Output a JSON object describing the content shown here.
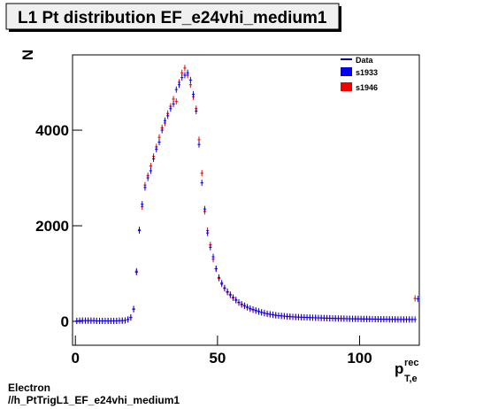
{
  "chart_data": {
    "type": "histogram",
    "title": "L1 Pt distribution EF_e24vhi_medium1",
    "ylabel": "N",
    "xlabel": {
      "base": "p",
      "sup": "rec",
      "sub": "T,e"
    },
    "footer": [
      "Electron",
      "//h_PtTrigL1_EF_e24vhi_medium1"
    ],
    "legend_line": {
      "label": "Data",
      "color": "#000099"
    },
    "legend": "top-right",
    "xlim": [
      -1,
      121
    ],
    "ylim": [
      -500,
      5575
    ],
    "xticks": [
      0,
      50,
      100
    ],
    "yticks": [
      0,
      2000,
      4000
    ],
    "bins": [
      0,
      1,
      2,
      3,
      4,
      5,
      6,
      7,
      8,
      9,
      10,
      11,
      12,
      13,
      14,
      15,
      16,
      17,
      18,
      19,
      20,
      21,
      22,
      23,
      24,
      25,
      26,
      27,
      28,
      29,
      30,
      31,
      32,
      33,
      34,
      35,
      36,
      37,
      38,
      39,
      40,
      41,
      42,
      43,
      44,
      45,
      46,
      47,
      48,
      49,
      50,
      51,
      52,
      53,
      54,
      55,
      56,
      57,
      58,
      59,
      60,
      61,
      62,
      63,
      64,
      65,
      66,
      67,
      68,
      69,
      70,
      71,
      72,
      73,
      74,
      75,
      76,
      77,
      78,
      79,
      80,
      81,
      82,
      83,
      84,
      85,
      86,
      87,
      88,
      89,
      90,
      91,
      92,
      93,
      94,
      95,
      96,
      97,
      98,
      99,
      100,
      101,
      102,
      103,
      104,
      105,
      106,
      107,
      108,
      109,
      110,
      111,
      112,
      113,
      114,
      115,
      116,
      117,
      118,
      119,
      120,
      121
    ],
    "series": [
      {
        "name": "s1933",
        "color": "#0000ee",
        "values": [
          10,
          15,
          15,
          15,
          15,
          15,
          15,
          10,
          10,
          10,
          10,
          10,
          10,
          10,
          10,
          15,
          15,
          20,
          40,
          80,
          260,
          1030,
          1900,
          2450,
          2800,
          3000,
          3150,
          3400,
          3600,
          3750,
          4000,
          4200,
          4300,
          4450,
          4550,
          4850,
          4950,
          5100,
          5150,
          5200,
          5050,
          4750,
          4400,
          3700,
          2900,
          2350,
          1850,
          1550,
          1350,
          1100,
          920,
          800,
          700,
          620,
          560,
          500,
          450,
          400,
          360,
          330,
          300,
          270,
          250,
          230,
          210,
          190,
          175,
          160,
          150,
          140,
          130,
          120,
          115,
          110,
          105,
          100,
          95,
          92,
          90,
          88,
          85,
          82,
          80,
          78,
          76,
          74,
          72,
          70,
          68,
          66,
          64,
          62,
          60,
          60,
          58,
          56,
          55,
          54,
          53,
          52,
          51,
          50,
          50,
          49,
          48,
          47,
          46,
          45,
          45,
          44,
          43,
          42,
          42,
          41,
          40,
          40,
          40,
          40,
          40,
          40,
          470
        ]
      },
      {
        "name": "s1946",
        "color": "#ee0000",
        "values": [
          10,
          15,
          15,
          15,
          15,
          15,
          15,
          10,
          10,
          10,
          10,
          10,
          10,
          10,
          10,
          15,
          15,
          20,
          40,
          80,
          250,
          1050,
          1920,
          2400,
          2850,
          3050,
          3250,
          3450,
          3650,
          3850,
          4050,
          4150,
          4350,
          4500,
          4650,
          4600,
          5000,
          5200,
          5300,
          5150,
          4950,
          4700,
          4450,
          3800,
          3100,
          2300,
          1900,
          1600,
          1300,
          1100,
          900,
          780,
          690,
          610,
          550,
          490,
          440,
          390,
          350,
          320,
          290,
          260,
          240,
          220,
          200,
          185,
          170,
          155,
          145,
          135,
          125,
          118,
          112,
          108,
          100,
          98,
          93,
          90,
          88,
          85,
          83,
          80,
          78,
          76,
          74,
          72,
          70,
          68,
          66,
          64,
          62,
          60,
          59,
          58,
          56,
          55,
          54,
          53,
          52,
          51,
          50,
          50,
          49,
          48,
          47,
          46,
          45,
          45,
          44,
          43,
          42,
          42,
          41,
          40,
          40,
          40,
          40,
          40,
          40,
          480
        ]
      }
    ]
  }
}
